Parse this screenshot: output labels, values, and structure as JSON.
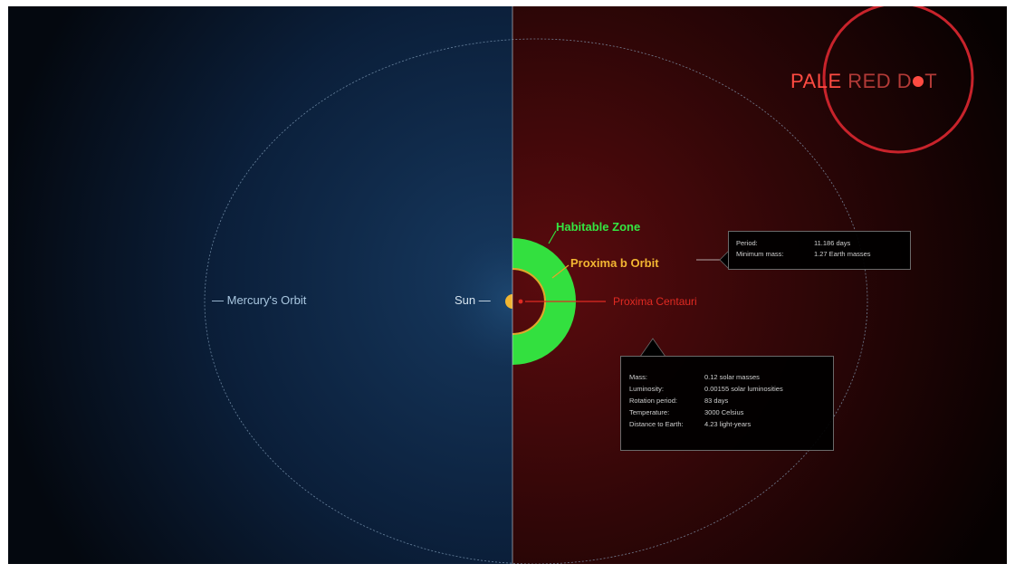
{
  "logo": {
    "text_pale": "PALE",
    "text_red": "RED D",
    "text_t": "T",
    "ring_color": "#c8232b"
  },
  "labels": {
    "mercury_orbit": "— Mercury's Orbit",
    "sun": "Sun —",
    "habitable_zone": "Habitable Zone",
    "proxima_b_orbit": "Proxima b Orbit",
    "proxima_centauri": "Proxima Centauri"
  },
  "planet_box": {
    "rows": [
      {
        "key": "Period:",
        "value": "11.186 days"
      },
      {
        "key": "Minimum mass:",
        "value": "1.27 Earth masses"
      }
    ]
  },
  "star_box": {
    "rows": [
      {
        "key": "Mass:",
        "value": "0.12 solar masses"
      },
      {
        "key": "Luminosity:",
        "value": "0.00155 solar luminosities"
      },
      {
        "key": "Rotation period:",
        "value": "83 days"
      },
      {
        "key": "Temperature:",
        "value": "3000 Celsius"
      },
      {
        "key": "Distance to Earth:",
        "value": "4.23 light-years"
      }
    ]
  },
  "colors": {
    "blue_half": "#0b2545",
    "red_half": "#4a0a0c",
    "habitable_zone": "#33e03f",
    "proxima_b_orbit": "#e6a32a",
    "proxima_centauri": "#e02a22",
    "sun": "#f2b632"
  }
}
